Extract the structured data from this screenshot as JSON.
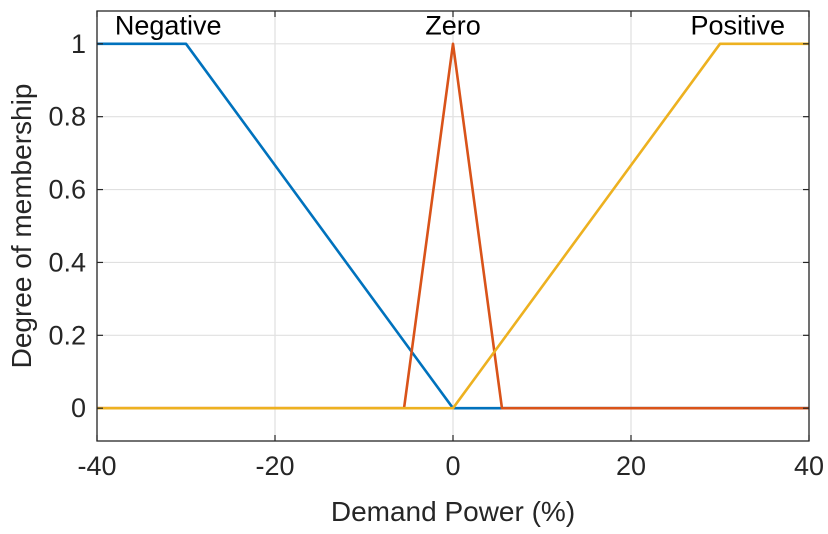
{
  "figure": {
    "background": "#ffffff",
    "axis_color": "#262626",
    "grid_color": "#e0e0e0",
    "label_color": "#262626",
    "annotation_color": "#000000"
  },
  "chart_data": {
    "type": "line",
    "title": "",
    "xlabel": "Demand Power (%)",
    "ylabel": "Degree of membership",
    "xlim": [
      -40,
      40
    ],
    "ylim": [
      -0.09,
      1.09
    ],
    "grid": true,
    "legend": "none",
    "xticks": [
      {
        "v": -40,
        "label": "-40"
      },
      {
        "v": -20,
        "label": "-20"
      },
      {
        "v": 0,
        "label": "0"
      },
      {
        "v": 20,
        "label": "20"
      },
      {
        "v": 40,
        "label": "40"
      }
    ],
    "yticks": [
      {
        "v": 0,
        "label": "0"
      },
      {
        "v": 0.2,
        "label": "0.2"
      },
      {
        "v": 0.4,
        "label": "0.4"
      },
      {
        "v": 0.6,
        "label": "0.6"
      },
      {
        "v": 0.8,
        "label": "0.8"
      },
      {
        "v": 1,
        "label": "1"
      }
    ],
    "series": [
      {
        "name": "Negative",
        "color": "#0072BD",
        "points": [
          [
            -40,
            1
          ],
          [
            -30,
            1
          ],
          [
            0,
            0
          ],
          [
            40,
            0
          ]
        ]
      },
      {
        "name": "Zero",
        "color": "#D95319",
        "points": [
          [
            -40,
            0
          ],
          [
            -5.5,
            0
          ],
          [
            0,
            1
          ],
          [
            5.5,
            0
          ],
          [
            40,
            0
          ]
        ]
      },
      {
        "name": "Positive",
        "color": "#EDB120",
        "points": [
          [
            -40,
            0
          ],
          [
            0,
            0
          ],
          [
            30,
            1
          ],
          [
            40,
            1
          ]
        ]
      }
    ],
    "annotations": [
      {
        "text": "Negative",
        "x": -32,
        "y": 1.05
      },
      {
        "text": "Zero",
        "x": 0,
        "y": 1.05
      },
      {
        "text": "Positive",
        "x": 32,
        "y": 1.05
      }
    ]
  }
}
